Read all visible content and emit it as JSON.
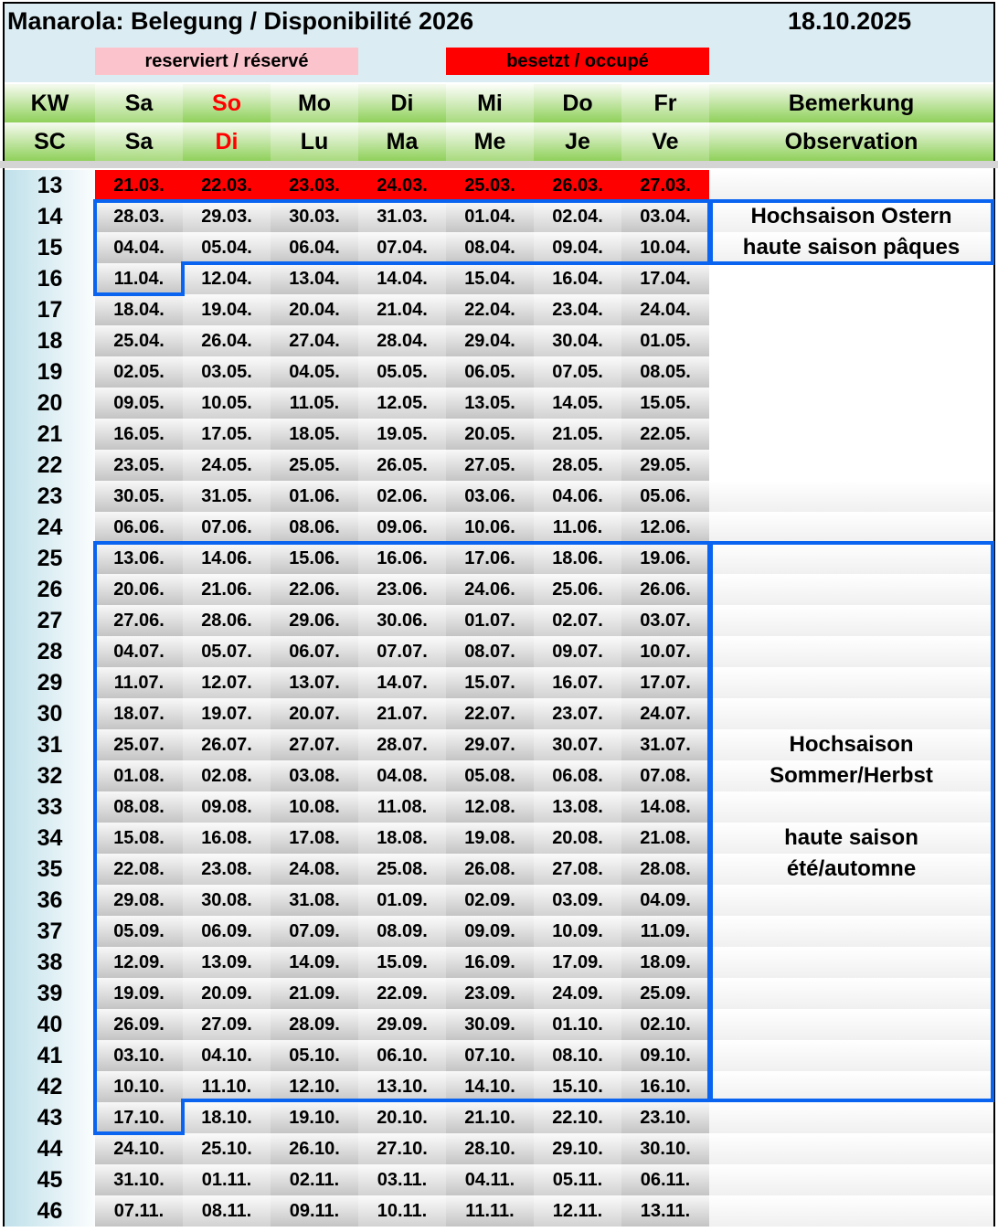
{
  "title": "Manarola: Belegung / Disponibilité 2026",
  "date": "18.10.2025",
  "legend": {
    "reserved": "reserviert / réservé",
    "occupied": "besetzt / occupé",
    "reserved_color": "#fbc4cc",
    "occupied_color": "#fe0000"
  },
  "header_de": [
    "KW",
    "Sa",
    "So",
    "Mo",
    "Di",
    "Mi",
    "Do",
    "Fr",
    "Bemerkung"
  ],
  "header_fr": [
    "SC",
    "Sa",
    "Di",
    "Lu",
    "Ma",
    "Me",
    "Je",
    "Ve",
    "Observation"
  ],
  "rows": [
    {
      "kw": "13",
      "status": "occupied",
      "dates": [
        "21.03.",
        "22.03.",
        "23.03.",
        "24.03.",
        "25.03.",
        "26.03.",
        "27.03."
      ],
      "remark": ""
    },
    {
      "kw": "14",
      "dates": [
        "28.03.",
        "29.03.",
        "30.03.",
        "31.03.",
        "01.04.",
        "02.04.",
        "03.04."
      ],
      "remark": "Hochsaison Ostern"
    },
    {
      "kw": "15",
      "dates": [
        "04.04.",
        "05.04.",
        "06.04.",
        "07.04.",
        "08.04.",
        "09.04.",
        "10.04."
      ],
      "remark": "haute saison pâques"
    },
    {
      "kw": "16",
      "dates": [
        "11.04.",
        "12.04.",
        "13.04.",
        "14.04.",
        "15.04.",
        "16.04.",
        "17.04."
      ],
      "remark": ""
    },
    {
      "kw": "17",
      "dates": [
        "18.04.",
        "19.04.",
        "20.04.",
        "21.04.",
        "22.04.",
        "23.04.",
        "24.04."
      ],
      "remark": ""
    },
    {
      "kw": "18",
      "dates": [
        "25.04.",
        "26.04.",
        "27.04.",
        "28.04.",
        "29.04.",
        "30.04.",
        "01.05."
      ],
      "remark": ""
    },
    {
      "kw": "19",
      "dates": [
        "02.05.",
        "03.05.",
        "04.05.",
        "05.05.",
        "06.05.",
        "07.05.",
        "08.05."
      ],
      "remark": ""
    },
    {
      "kw": "20",
      "dates": [
        "09.05.",
        "10.05.",
        "11.05.",
        "12.05.",
        "13.05.",
        "14.05.",
        "15.05."
      ],
      "remark": ""
    },
    {
      "kw": "21",
      "dates": [
        "16.05.",
        "17.05.",
        "18.05.",
        "19.05.",
        "20.05.",
        "21.05.",
        "22.05."
      ],
      "remark": ""
    },
    {
      "kw": "22",
      "dates": [
        "23.05.",
        "24.05.",
        "25.05.",
        "26.05.",
        "27.05.",
        "28.05.",
        "29.05."
      ],
      "remark": ""
    },
    {
      "kw": "23",
      "dates": [
        "30.05.",
        "31.05.",
        "01.06.",
        "02.06.",
        "03.06.",
        "04.06.",
        "05.06."
      ],
      "remark": ""
    },
    {
      "kw": "24",
      "dates": [
        "06.06.",
        "07.06.",
        "08.06.",
        "09.06.",
        "10.06.",
        "11.06.",
        "12.06."
      ],
      "remark": ""
    },
    {
      "kw": "25",
      "dates": [
        "13.06.",
        "14.06.",
        "15.06.",
        "16.06.",
        "17.06.",
        "18.06.",
        "19.06."
      ],
      "remark": ""
    },
    {
      "kw": "26",
      "dates": [
        "20.06.",
        "21.06.",
        "22.06.",
        "23.06.",
        "24.06.",
        "25.06.",
        "26.06."
      ],
      "remark": ""
    },
    {
      "kw": "27",
      "dates": [
        "27.06.",
        "28.06.",
        "29.06.",
        "30.06.",
        "01.07.",
        "02.07.",
        "03.07."
      ],
      "remark": ""
    },
    {
      "kw": "28",
      "dates": [
        "04.07.",
        "05.07.",
        "06.07.",
        "07.07.",
        "08.07.",
        "09.07.",
        "10.07."
      ],
      "remark": ""
    },
    {
      "kw": "29",
      "dates": [
        "11.07.",
        "12.07.",
        "13.07.",
        "14.07.",
        "15.07.",
        "16.07.",
        "17.07."
      ],
      "remark": ""
    },
    {
      "kw": "30",
      "dates": [
        "18.07.",
        "19.07.",
        "20.07.",
        "21.07.",
        "22.07.",
        "23.07.",
        "24.07."
      ],
      "remark": ""
    },
    {
      "kw": "31",
      "dates": [
        "25.07.",
        "26.07.",
        "27.07.",
        "28.07.",
        "29.07.",
        "30.07.",
        "31.07."
      ],
      "remark": "Hochsaison"
    },
    {
      "kw": "32",
      "dates": [
        "01.08.",
        "02.08.",
        "03.08.",
        "04.08.",
        "05.08.",
        "06.08.",
        "07.08."
      ],
      "remark": "Sommer/Herbst"
    },
    {
      "kw": "33",
      "dates": [
        "08.08.",
        "09.08.",
        "10.08.",
        "11.08.",
        "12.08.",
        "13.08.",
        "14.08."
      ],
      "remark": ""
    },
    {
      "kw": "34",
      "dates": [
        "15.08.",
        "16.08.",
        "17.08.",
        "18.08.",
        "19.08.",
        "20.08.",
        "21.08."
      ],
      "remark": "haute saison"
    },
    {
      "kw": "35",
      "dates": [
        "22.08.",
        "23.08.",
        "24.08.",
        "25.08.",
        "26.08.",
        "27.08.",
        "28.08."
      ],
      "remark": "été/automne"
    },
    {
      "kw": "36",
      "dates": [
        "29.08.",
        "30.08.",
        "31.08.",
        "01.09.",
        "02.09.",
        "03.09.",
        "04.09."
      ],
      "remark": ""
    },
    {
      "kw": "37",
      "dates": [
        "05.09.",
        "06.09.",
        "07.09.",
        "08.09.",
        "09.09.",
        "10.09.",
        "11.09."
      ],
      "remark": ""
    },
    {
      "kw": "38",
      "dates": [
        "12.09.",
        "13.09.",
        "14.09.",
        "15.09.",
        "16.09.",
        "17.09.",
        "18.09."
      ],
      "remark": ""
    },
    {
      "kw": "39",
      "dates": [
        "19.09.",
        "20.09.",
        "21.09.",
        "22.09.",
        "23.09.",
        "24.09.",
        "25.09."
      ],
      "remark": ""
    },
    {
      "kw": "40",
      "dates": [
        "26.09.",
        "27.09.",
        "28.09.",
        "29.09.",
        "30.09.",
        "01.10.",
        "02.10."
      ],
      "remark": ""
    },
    {
      "kw": "41",
      "dates": [
        "03.10.",
        "04.10.",
        "05.10.",
        "06.10.",
        "07.10.",
        "08.10.",
        "09.10."
      ],
      "remark": ""
    },
    {
      "kw": "42",
      "dates": [
        "10.10.",
        "11.10.",
        "12.10.",
        "13.10.",
        "14.10.",
        "15.10.",
        "16.10."
      ],
      "remark": ""
    },
    {
      "kw": "43",
      "dates": [
        "17.10.",
        "18.10.",
        "19.10.",
        "20.10.",
        "21.10.",
        "22.10.",
        "23.10."
      ],
      "remark": ""
    },
    {
      "kw": "44",
      "dates": [
        "24.10.",
        "25.10.",
        "26.10.",
        "27.10.",
        "28.10.",
        "29.10.",
        "30.10."
      ],
      "remark": ""
    },
    {
      "kw": "45",
      "dates": [
        "31.10.",
        "01.11.",
        "02.11.",
        "03.11.",
        "04.11.",
        "05.11.",
        "06.11."
      ],
      "remark": ""
    },
    {
      "kw": "46",
      "dates": [
        "07.11.",
        "08.11.",
        "09.11.",
        "10.11.",
        "11.11.",
        "12.11.",
        "13.11."
      ],
      "remark": ""
    }
  ],
  "highlight_color": "#0a64f0"
}
